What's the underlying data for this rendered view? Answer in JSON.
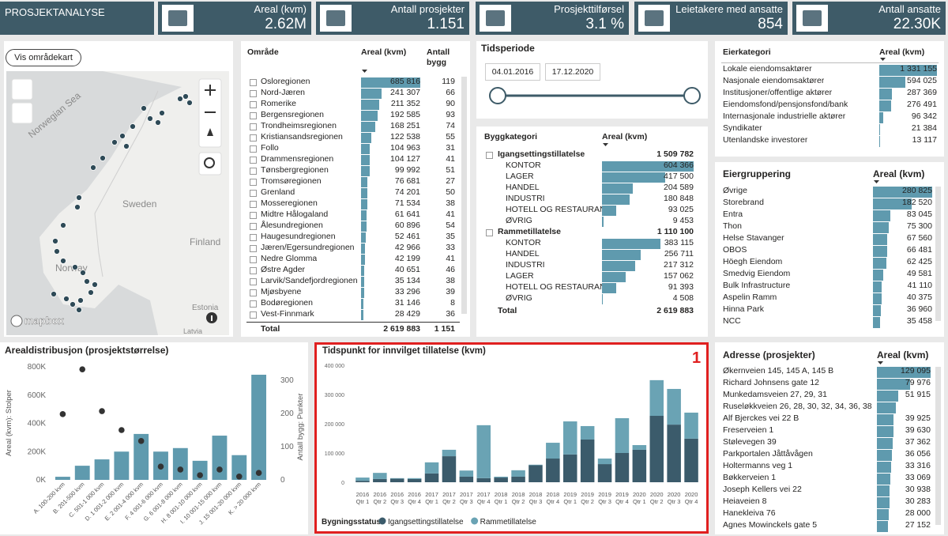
{
  "header": {
    "title": "PROSJEKTANALYSE"
  },
  "kpis": [
    {
      "label": "Areal (kvm)",
      "value": "2.62M"
    },
    {
      "label": "Antall prosjekter",
      "value": "1.151"
    },
    {
      "label": "Prosjekttilførsel",
      "value": "3.1 %"
    },
    {
      "label": "Leietakere med ansatte",
      "value": "854"
    },
    {
      "label": "Antall ansatte",
      "value": "22.30K"
    }
  ],
  "map": {
    "button": "Vis områdekart",
    "labels": [
      "Norwegian Sea",
      "Sweden",
      "Finland",
      "Norway",
      "Estonia",
      "Latvia"
    ],
    "attribution": "mapbox"
  },
  "omrade": {
    "columns": [
      "Område",
      "Areal (kvm)",
      "Antall bygg"
    ],
    "rows": [
      {
        "name": "Osloregionen",
        "areal": 685816,
        "areal_label": "685 816",
        "bygg": 119
      },
      {
        "name": "Nord-Jæren",
        "areal": 241307,
        "areal_label": "241 307",
        "bygg": 66
      },
      {
        "name": "Romerike",
        "areal": 211352,
        "areal_label": "211 352",
        "bygg": 90
      },
      {
        "name": "Bergensregionen",
        "areal": 192585,
        "areal_label": "192 585",
        "bygg": 93
      },
      {
        "name": "Trondheimsregionen",
        "areal": 168251,
        "areal_label": "168 251",
        "bygg": 74
      },
      {
        "name": "Kristiansandsregionen",
        "areal": 122538,
        "areal_label": "122 538",
        "bygg": 55
      },
      {
        "name": "Follo",
        "areal": 104963,
        "areal_label": "104 963",
        "bygg": 31
      },
      {
        "name": "Drammensregionen",
        "areal": 104127,
        "areal_label": "104 127",
        "bygg": 41
      },
      {
        "name": "Tønsbergregionen",
        "areal": 99992,
        "areal_label": "99 992",
        "bygg": 51
      },
      {
        "name": "Tromsøregionen",
        "areal": 76681,
        "areal_label": "76 681",
        "bygg": 27
      },
      {
        "name": "Grenland",
        "areal": 74201,
        "areal_label": "74 201",
        "bygg": 50
      },
      {
        "name": "Mosseregionen",
        "areal": 71534,
        "areal_label": "71 534",
        "bygg": 38
      },
      {
        "name": "Midtre Hålogaland",
        "areal": 61641,
        "areal_label": "61 641",
        "bygg": 41
      },
      {
        "name": "Ålesundregionen",
        "areal": 60896,
        "areal_label": "60 896",
        "bygg": 54
      },
      {
        "name": "Haugesundregionen",
        "areal": 52461,
        "areal_label": "52 461",
        "bygg": 35
      },
      {
        "name": "Jæren/Egersundregionen",
        "areal": 42966,
        "areal_label": "42 966",
        "bygg": 33
      },
      {
        "name": "Nedre Glomma",
        "areal": 42199,
        "areal_label": "42 199",
        "bygg": 41
      },
      {
        "name": "Østre Agder",
        "areal": 40651,
        "areal_label": "40 651",
        "bygg": 46
      },
      {
        "name": "Larvik/Sandefjordregionen",
        "areal": 35134,
        "areal_label": "35 134",
        "bygg": 38
      },
      {
        "name": "Mjøsbyene",
        "areal": 33296,
        "areal_label": "33 296",
        "bygg": 39
      },
      {
        "name": "Bodøregionen",
        "areal": 31146,
        "areal_label": "31 146",
        "bygg": 8
      },
      {
        "name": "Vest-Finnmark",
        "areal": 28429,
        "areal_label": "28 429",
        "bygg": 36
      }
    ],
    "total": {
      "name": "Total",
      "areal_label": "2 619 883",
      "bygg": "1 151"
    }
  },
  "tidsperiode": {
    "title": "Tidsperiode",
    "start": "04.01.2016",
    "end": "17.12.2020"
  },
  "byggkategori": {
    "columns": [
      "Byggkategori",
      "Areal (kvm)"
    ],
    "groups": [
      {
        "name": "Igangsettingstillatelse",
        "areal_label": "1 509 782",
        "items": [
          {
            "name": "KONTOR",
            "areal": 604366,
            "areal_label": "604 366"
          },
          {
            "name": "LAGER",
            "areal": 417500,
            "areal_label": "417 500"
          },
          {
            "name": "HANDEL",
            "areal": 204589,
            "areal_label": "204 589"
          },
          {
            "name": "INDUSTRI",
            "areal": 180848,
            "areal_label": "180 848"
          },
          {
            "name": "HOTELL OG RESTAURANT",
            "areal": 93025,
            "areal_label": "93 025"
          },
          {
            "name": "ØVRIG",
            "areal": 9453,
            "areal_label": "9 453"
          }
        ]
      },
      {
        "name": "Rammetillatelse",
        "areal_label": "1 110 100",
        "items": [
          {
            "name": "KONTOR",
            "areal": 383115,
            "areal_label": "383 115"
          },
          {
            "name": "HANDEL",
            "areal": 256711,
            "areal_label": "256 711"
          },
          {
            "name": "INDUSTRI",
            "areal": 217312,
            "areal_label": "217 312"
          },
          {
            "name": "LAGER",
            "areal": 157062,
            "areal_label": "157 062"
          },
          {
            "name": "HOTELL OG RESTAURANT",
            "areal": 91393,
            "areal_label": "91 393"
          },
          {
            "name": "ØVRIG",
            "areal": 4508,
            "areal_label": "4 508"
          }
        ]
      }
    ],
    "total": {
      "name": "Total",
      "areal_label": "2 619 883"
    }
  },
  "eierkategori": {
    "columns": [
      "Eierkategori",
      "Areal (kvm)"
    ],
    "rows": [
      {
        "name": "Lokale eiendomsaktører",
        "areal": 1331155,
        "areal_label": "1 331 155"
      },
      {
        "name": "Nasjonale eiendomsaktører",
        "areal": 594025,
        "areal_label": "594 025"
      },
      {
        "name": "Institusjoner/offentlige aktører",
        "areal": 287369,
        "areal_label": "287 369"
      },
      {
        "name": "Eiendomsfond/pensjonsfond/bank",
        "areal": 276491,
        "areal_label": "276 491"
      },
      {
        "name": "Internasjonale industrielle aktører",
        "areal": 96342,
        "areal_label": "96 342"
      },
      {
        "name": "Syndikater",
        "areal": 21384,
        "areal_label": "21 384"
      },
      {
        "name": "Utenlandske investorer",
        "areal": 13117,
        "areal_label": "13 117"
      }
    ]
  },
  "eiergruppering": {
    "columns": [
      "Eiergruppering",
      "Areal (kvm)"
    ],
    "rows": [
      {
        "name": "Øvrige",
        "areal": 280825,
        "areal_label": "280 825"
      },
      {
        "name": "Storebrand",
        "areal": 182520,
        "areal_label": "182 520"
      },
      {
        "name": "Entra",
        "areal": 83045,
        "areal_label": "83 045"
      },
      {
        "name": "Thon",
        "areal": 75300,
        "areal_label": "75 300"
      },
      {
        "name": "Helse Stavanger",
        "areal": 67560,
        "areal_label": "67 560"
      },
      {
        "name": "OBOS",
        "areal": 66481,
        "areal_label": "66 481"
      },
      {
        "name": "Höegh Eiendom",
        "areal": 62425,
        "areal_label": "62 425"
      },
      {
        "name": "Smedvig Eiendom",
        "areal": 49581,
        "areal_label": "49 581"
      },
      {
        "name": "Bulk Infrastructure",
        "areal": 41110,
        "areal_label": "41 110"
      },
      {
        "name": "Aspelin Ramm",
        "areal": 40375,
        "areal_label": "40 375"
      },
      {
        "name": "Hinna Park",
        "areal": 36960,
        "areal_label": "36 960"
      },
      {
        "name": "NCC",
        "areal": 35458,
        "areal_label": "35 458"
      }
    ]
  },
  "adresse": {
    "columns": [
      "Adresse (prosjekter)",
      "Areal (kvm)"
    ],
    "rows": [
      {
        "name": "Økernveien 145, 145 A, 145 B",
        "areal": 129095,
        "areal_label": "129 095"
      },
      {
        "name": "Richard Johnsens gate 12",
        "areal": 79976,
        "areal_label": "79 976"
      },
      {
        "name": "Munkedamsveien 27, 29, 31",
        "areal": 51915,
        "areal_label": "51 915"
      },
      {
        "name": "Ruseløkkveien 26, 28, 30, 32, 34, 36, 38",
        "areal": 45000
      },
      {
        "name": "Alf Bjerckes vei 22 B",
        "areal": 39925,
        "areal_label": "39 925"
      },
      {
        "name": "Freserveien 1",
        "areal": 39630,
        "areal_label": "39 630"
      },
      {
        "name": "Stølevegen 39",
        "areal": 37362,
        "areal_label": "37 362"
      },
      {
        "name": "Parkportalen Jåttåvågen",
        "areal": 36056,
        "areal_label": "36 056"
      },
      {
        "name": "Holtermanns veg 1",
        "areal": 33316,
        "areal_label": "33 316"
      },
      {
        "name": "Bøkkerveien 1",
        "areal": 33069,
        "areal_label": "33 069"
      },
      {
        "name": "Joseph Kellers vei 22",
        "areal": 30938,
        "areal_label": "30 938"
      },
      {
        "name": "Heiaveien 8",
        "areal": 30283,
        "areal_label": "30 283"
      },
      {
        "name": "Hanekleiva 76",
        "areal": 28000,
        "areal_label": "28 000"
      },
      {
        "name": "Agnes Mowinckels gate 5",
        "areal": 27152,
        "areal_label": "27 152"
      }
    ]
  },
  "chart_data": [
    {
      "type": "bar_scatter",
      "title": "Arealdistribusjon (prosjektstørrelse)",
      "y_label": "Areal (kvm): Stolper",
      "y2_label": "Antall bygg: Punkter",
      "categories": [
        "A. 100-200 kvm",
        "B. 201-500 kvm",
        "C. 501-1 000 kvm",
        "D. 1 001-2 000 kvm",
        "E. 2 001-4 000 kvm",
        "F. 4 001-6 000 kvm",
        "G. 6 001-8 000 kvm",
        "H. 8 001-10 000 kvm",
        "I. 10 001-15 000 kvm",
        "J. 15 001-20 000 kvm",
        "K. > 20 000 kvm"
      ],
      "series": [
        {
          "color": "#5f9aae",
          "values": [
            22000,
            100000,
            145000,
            200000,
            325000,
            200000,
            225000,
            135000,
            313000,
            175000,
            744000
          ]
        },
        {
          "color": "#333333",
          "axis": "y2",
          "values": [
            198,
            333,
            207,
            150,
            117,
            40,
            31,
            14,
            31,
            10,
            21
          ]
        }
      ],
      "ylim": [
        0,
        800000
      ],
      "yticks": [
        {
          "value": 0,
          "label": "0K"
        },
        {
          "value": 200000,
          "label": "200K"
        },
        {
          "value": 400000,
          "label": "400K"
        },
        {
          "value": 600000,
          "label": "600K"
        },
        {
          "value": 800000,
          "label": "800K"
        }
      ],
      "y2lim": [
        0,
        340
      ],
      "y2ticks": [
        0,
        100,
        200,
        300
      ]
    },
    {
      "type": "stacked_bar",
      "title": "Tidspunkt for innvilget tillatelse (kvm)",
      "annotation": "1",
      "legend_title": "Bygningsstatus",
      "categories": [
        "2016 Qtr 1",
        "2016 Qtr 2",
        "2016 Qtr 3",
        "2016 Qtr 4",
        "2017 Qtr 1",
        "2017 Qtr 2",
        "2017 Qtr 3",
        "2017 Qtr 4",
        "2018 Qtr 1",
        "2018 Qtr 2",
        "2018 Qtr 3",
        "2018 Qtr 4",
        "2019 Qtr 1",
        "2019 Qtr 2",
        "2019 Qtr 3",
        "2019 Qtr 4",
        "2020 Qtr 1",
        "2020 Qtr 2",
        "2020 Qtr 3",
        "2020 Qtr 4"
      ],
      "series": [
        {
          "name": "Igangsettingstillatelse",
          "color": "#3b5b6b",
          "values": [
            5000,
            11000,
            12000,
            11000,
            30000,
            89000,
            19000,
            14000,
            16000,
            19000,
            58000,
            81000,
            95000,
            146000,
            62000,
            100000,
            111000,
            227000,
            197000,
            149000
          ]
        },
        {
          "name": "Rammetillatelse",
          "color": "#6aa3b4",
          "values": [
            11000,
            21000,
            2000,
            3000,
            38000,
            22000,
            21000,
            181000,
            3000,
            22000,
            2000,
            54000,
            113000,
            46000,
            19000,
            119000,
            16000,
            122000,
            122000,
            89000
          ]
        }
      ],
      "ylim": [
        0,
        420000
      ],
      "yticks": [
        0,
        {
          "value": 100000,
          "label": "100 000"
        },
        {
          "value": 200000,
          "label": "200 000"
        },
        {
          "value": 300000,
          "label": "300 000"
        },
        {
          "value": 400000,
          "label": "400 000"
        }
      ],
      "grid": false
    }
  ]
}
